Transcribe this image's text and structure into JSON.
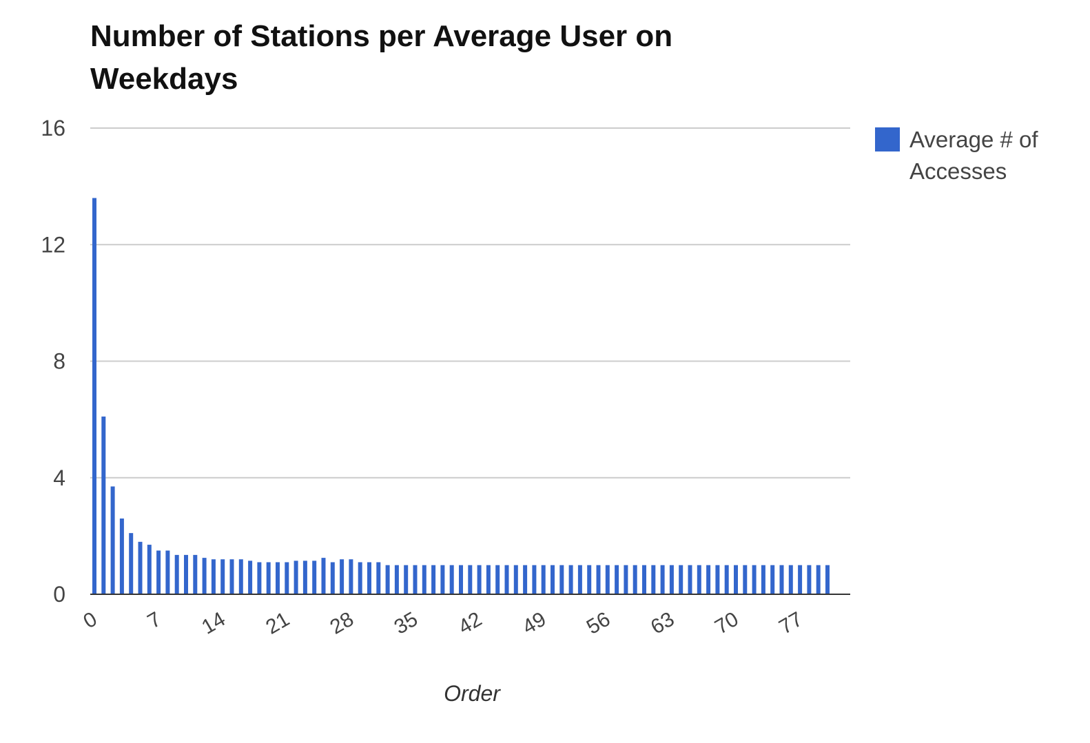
{
  "chart_data": {
    "type": "bar",
    "title": "Number of Stations per Average User on Weekdays",
    "xlabel": "Order",
    "ylabel": "",
    "ylim": [
      0,
      16
    ],
    "yticks": [
      0,
      4,
      8,
      12,
      16
    ],
    "xticks": [
      0,
      7,
      14,
      21,
      28,
      35,
      42,
      49,
      56,
      63,
      70,
      77
    ],
    "xlim": [
      0,
      81
    ],
    "grid": true,
    "legend_position": "right",
    "colors": {
      "bar": "#3366cc",
      "grid": "#cccccc",
      "axis": "#333333"
    },
    "series": [
      {
        "name": "Average # of Accesses",
        "x": [
          0,
          1,
          2,
          3,
          4,
          5,
          6,
          7,
          8,
          9,
          10,
          11,
          12,
          13,
          14,
          15,
          16,
          17,
          18,
          19,
          20,
          21,
          22,
          23,
          24,
          25,
          26,
          27,
          28,
          29,
          30,
          31,
          32,
          33,
          34,
          35,
          36,
          37,
          38,
          39,
          40,
          41,
          42,
          43,
          44,
          45,
          46,
          47,
          48,
          49,
          50,
          51,
          52,
          53,
          54,
          55,
          56,
          57,
          58,
          59,
          60,
          61,
          62,
          63,
          64,
          65,
          66,
          67,
          68,
          69,
          70,
          71,
          72,
          73,
          74,
          75,
          76,
          77,
          78,
          79,
          80
        ],
        "values": [
          13.6,
          6.1,
          3.7,
          2.6,
          2.1,
          1.8,
          1.7,
          1.5,
          1.5,
          1.35,
          1.35,
          1.35,
          1.25,
          1.2,
          1.2,
          1.2,
          1.2,
          1.15,
          1.1,
          1.1,
          1.1,
          1.1,
          1.15,
          1.15,
          1.15,
          1.25,
          1.1,
          1.2,
          1.2,
          1.1,
          1.1,
          1.1,
          1.0,
          1.0,
          1.0,
          1.0,
          1.0,
          1.0,
          1.0,
          1.0,
          1.0,
          1.0,
          1.0,
          1.0,
          1.0,
          1.0,
          1.0,
          1.0,
          1.0,
          1.0,
          1.0,
          1.0,
          1.0,
          1.0,
          1.0,
          1.0,
          1.0,
          1.0,
          1.0,
          1.0,
          1.0,
          1.0,
          1.0,
          1.0,
          1.0,
          1.0,
          1.0,
          1.0,
          1.0,
          1.0,
          1.0,
          1.0,
          1.0,
          1.0,
          1.0,
          1.0,
          1.0,
          1.0,
          1.0,
          1.0,
          1.0
        ]
      }
    ]
  }
}
